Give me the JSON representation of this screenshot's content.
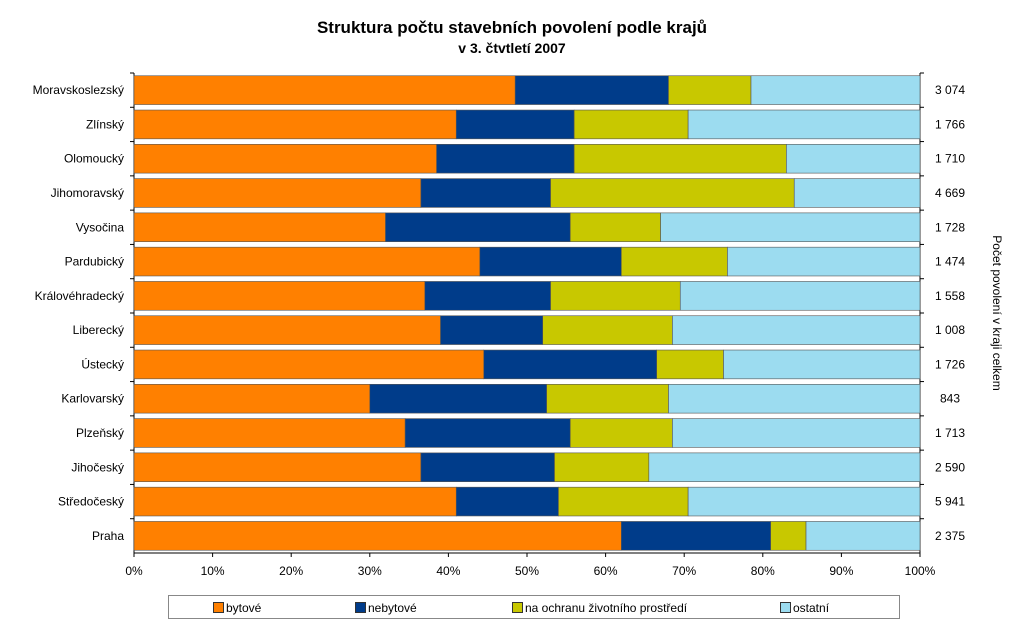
{
  "chart_data": {
    "type": "bar",
    "orientation": "horizontal",
    "stacked": "percent",
    "title": "Struktura počtu stavebních povolení podle krajů",
    "subtitle": "v 3. čtvtletí 2007",
    "xlabel": "",
    "ylabel": "",
    "right_axis_label": "Počet povolení v kraji celkem",
    "xlim": [
      0,
      100
    ],
    "x_ticks": [
      "0%",
      "10%",
      "20%",
      "30%",
      "40%",
      "50%",
      "60%",
      "70%",
      "80%",
      "90%",
      "100%"
    ],
    "grid": false,
    "legend_position": "bottom",
    "categories": [
      "Moravskoslezský",
      "Zlínský",
      "Olomoucký",
      "Jihomoravský",
      "Vysočina",
      "Pardubický",
      "Královéhradecký",
      "Liberecký",
      "Ústecký",
      "Karlovarský",
      "Plzeňský",
      "Jihočeský",
      "Středočeský",
      "Praha"
    ],
    "totals": [
      "3 074",
      "1 766",
      "1 710",
      "4 669",
      "1 728",
      "1 474",
      "1 558",
      "1 008",
      "1 726",
      "843",
      "1 713",
      "2 590",
      "5 941",
      "2 375"
    ],
    "series": [
      {
        "name": "bytové",
        "color": "#ff8000",
        "values": [
          48.5,
          41,
          38.5,
          36.5,
          32,
          44,
          37,
          39,
          44.5,
          30,
          34.5,
          36.5,
          41,
          62
        ]
      },
      {
        "name": "nebytové",
        "color": "#003c8a",
        "values": [
          19.5,
          15,
          17.5,
          16.5,
          23.5,
          18,
          16,
          13,
          22,
          22.5,
          21,
          17,
          13,
          19
        ]
      },
      {
        "name": "na ochranu životního prostředí",
        "color": "#c8c800",
        "values": [
          10.5,
          14.5,
          27,
          31,
          11.5,
          13.5,
          16.5,
          16.5,
          8.5,
          15.5,
          13,
          12,
          16.5,
          4.5
        ]
      },
      {
        "name": "ostatní",
        "color": "#9cdcf0",
        "values": [
          21.5,
          29.5,
          17,
          16,
          33,
          24.5,
          30.5,
          31.5,
          25,
          32,
          31.5,
          34.5,
          29.5,
          14.5
        ]
      }
    ]
  }
}
